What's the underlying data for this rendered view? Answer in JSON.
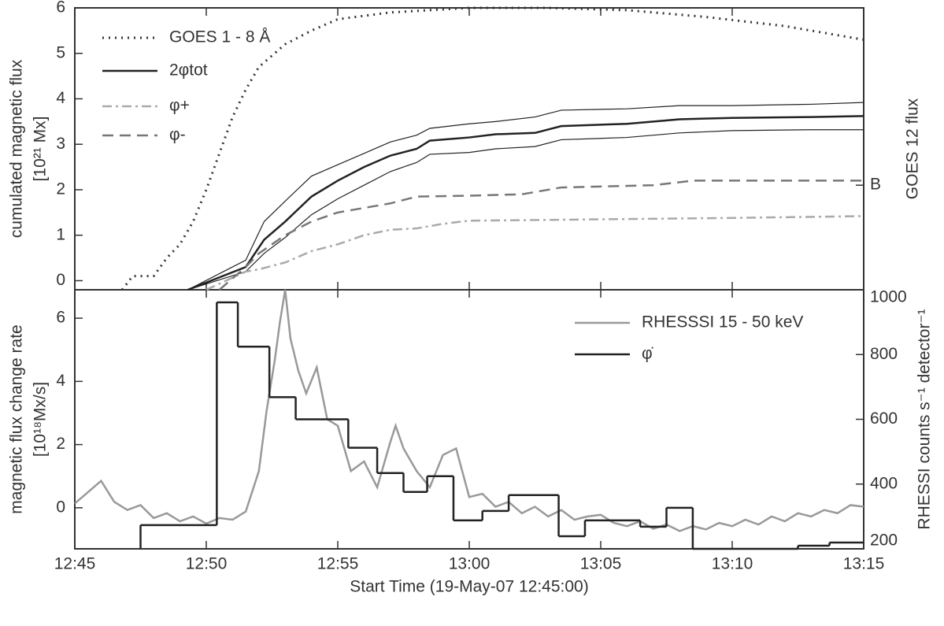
{
  "chart_data": [
    {
      "type": "line",
      "ylabel": "cumulated magnetic flux",
      "yunit": "[10²¹ Mx]",
      "y2label": "GOES 12 flux",
      "xlim": [
        0,
        30
      ],
      "ylim": [
        -0.2,
        6
      ],
      "yticks": [
        0,
        1,
        2,
        3,
        4,
        5,
        6
      ],
      "y2lim": [
        -0.2,
        6
      ],
      "y2ticks": [
        {
          "value": 2.1,
          "label": "B"
        }
      ],
      "series": [
        {
          "name": "GOES 1 - 8 Å",
          "color": "#333333",
          "dash": "dotted",
          "axis": "y2",
          "x": [
            1.8,
            2.2,
            3,
            3.5,
            4,
            4.5,
            5,
            5.5,
            6,
            6.5,
            7,
            8,
            9,
            10,
            12,
            15,
            18,
            21,
            24,
            27,
            30
          ],
          "values": [
            -0.2,
            0.1,
            0.1,
            0.5,
            0.8,
            1.3,
            2,
            2.8,
            3.6,
            4.2,
            4.7,
            5.2,
            5.5,
            5.75,
            5.9,
            6,
            6,
            5.95,
            5.8,
            5.6,
            5.3
          ]
        },
        {
          "name": "2φtot",
          "color": "#222222",
          "dash": "solid",
          "x": [
            4.3,
            6.5,
            7.2,
            8,
            9,
            10,
            11,
            12,
            13,
            13.5,
            15,
            16,
            17.5,
            18.5,
            21,
            23,
            25,
            28,
            30
          ],
          "values": [
            -0.2,
            0.3,
            0.9,
            1.3,
            1.85,
            2.2,
            2.5,
            2.75,
            2.9,
            3.08,
            3.15,
            3.22,
            3.25,
            3.4,
            3.45,
            3.55,
            3.58,
            3.6,
            3.62
          ],
          "upper": [
            -0.2,
            0.45,
            1.3,
            1.75,
            2.3,
            2.55,
            2.8,
            3.05,
            3.2,
            3.35,
            3.45,
            3.5,
            3.6,
            3.75,
            3.78,
            3.85,
            3.85,
            3.88,
            3.92
          ],
          "lower": [
            -0.2,
            0.2,
            0.6,
            0.95,
            1.45,
            1.8,
            2.1,
            2.4,
            2.6,
            2.78,
            2.82,
            2.9,
            2.95,
            3.1,
            3.15,
            3.25,
            3.3,
            3.32,
            3.32
          ]
        },
        {
          "name": "φ+",
          "color": "#aaaaaa",
          "dash": "dashdot",
          "x": [
            5,
            6.5,
            7,
            8,
            9,
            10,
            11,
            12,
            13,
            14,
            15,
            17,
            20,
            25,
            30
          ],
          "values": [
            -0.2,
            0.2,
            0.25,
            0.4,
            0.65,
            0.8,
            1.0,
            1.12,
            1.15,
            1.25,
            1.32,
            1.33,
            1.35,
            1.38,
            1.42
          ]
        },
        {
          "name": "φ-",
          "color": "#777777",
          "dash": "dashed",
          "x": [
            5.5,
            6.5,
            7,
            8,
            9,
            10,
            11,
            12,
            13,
            15,
            17,
            18.5,
            22,
            23.5,
            30
          ],
          "values": [
            -0.2,
            0.3,
            0.6,
            1.0,
            1.3,
            1.5,
            1.6,
            1.7,
            1.85,
            1.87,
            1.9,
            2.05,
            2.1,
            2.2,
            2.2
          ]
        }
      ]
    },
    {
      "type": "line",
      "xlabel": "Start Time (19-May-07 12:45:00)",
      "ylabel": "magnetic flux change rate",
      "yunit": "[10¹⁸Mx/s]",
      "y2label": "RHESSI counts s⁻¹ detector⁻¹",
      "xlim": [
        0,
        30
      ],
      "xticks": [
        {
          "value": 0,
          "label": "12:45"
        },
        {
          "value": 5,
          "label": "12:50"
        },
        {
          "value": 10,
          "label": "12:55"
        },
        {
          "value": 15,
          "label": "13:00"
        },
        {
          "value": 20,
          "label": "13:05"
        },
        {
          "value": 25,
          "label": "13:10"
        },
        {
          "value": 30,
          "label": "13:15"
        }
      ],
      "ylim": [
        -1.3,
        6.9
      ],
      "yticks": [
        0,
        2,
        4,
        6
      ],
      "y2lim": [
        200,
        1000
      ],
      "y2ticks": [
        200,
        400,
        600,
        800,
        1000
      ],
      "series": [
        {
          "name": "RHESSSI 15 - 50 keV",
          "color": "#999999",
          "dash": "solid",
          "axis": "y2",
          "x": [
            0,
            0.5,
            1,
            1.5,
            2,
            2.5,
            3,
            3.5,
            4,
            4.5,
            5,
            5.5,
            6,
            6.5,
            7,
            7.3,
            7.6,
            7.8,
            8,
            8.2,
            8.5,
            8.8,
            9.2,
            9.6,
            10,
            10.5,
            11,
            11.5,
            12,
            12.2,
            12.5,
            13,
            13.5,
            14,
            14.5,
            15,
            15.5,
            16,
            16.5,
            17,
            17.5,
            18,
            18.5,
            19,
            19.5,
            20,
            20.5,
            21,
            21.5,
            22,
            22.5,
            23,
            23.5,
            24,
            24.5,
            25,
            25.5,
            26,
            26.5,
            27,
            27.5,
            28,
            28.5,
            29,
            29.5,
            30
          ],
          "values": [
            340,
            375,
            410,
            345,
            320,
            335,
            295,
            310,
            285,
            300,
            278,
            295,
            290,
            315,
            440,
            630,
            780,
            900,
            1000,
            850,
            750,
            680,
            760,
            600,
            580,
            440,
            470,
            390,
            530,
            580,
            510,
            440,
            390,
            490,
            510,
            360,
            370,
            330,
            345,
            310,
            330,
            300,
            320,
            290,
            300,
            305,
            280,
            270,
            285,
            262,
            275,
            255,
            270,
            260,
            280,
            270,
            290,
            275,
            300,
            285,
            310,
            300,
            320,
            310,
            335,
            330
          ]
        },
        {
          "name": "φ̇",
          "color": "#222222",
          "dash": "solid",
          "bins": [
            2.5,
            5.4,
            6.2,
            7.4,
            8.4,
            10.4,
            11.5,
            12.5,
            13.4,
            14.4,
            15.5,
            16.5,
            18.4,
            19.4,
            21.5,
            22.5,
            23.5,
            27.5,
            28.7,
            30
          ],
          "values": [
            -0.55,
            6.5,
            5.1,
            3.5,
            2.8,
            1.9,
            1.1,
            0.5,
            1.0,
            -0.4,
            -0.1,
            0.4,
            -0.9,
            -0.4,
            -0.6,
            0.0,
            -1.3,
            -1.2,
            -1.1
          ]
        }
      ]
    }
  ]
}
